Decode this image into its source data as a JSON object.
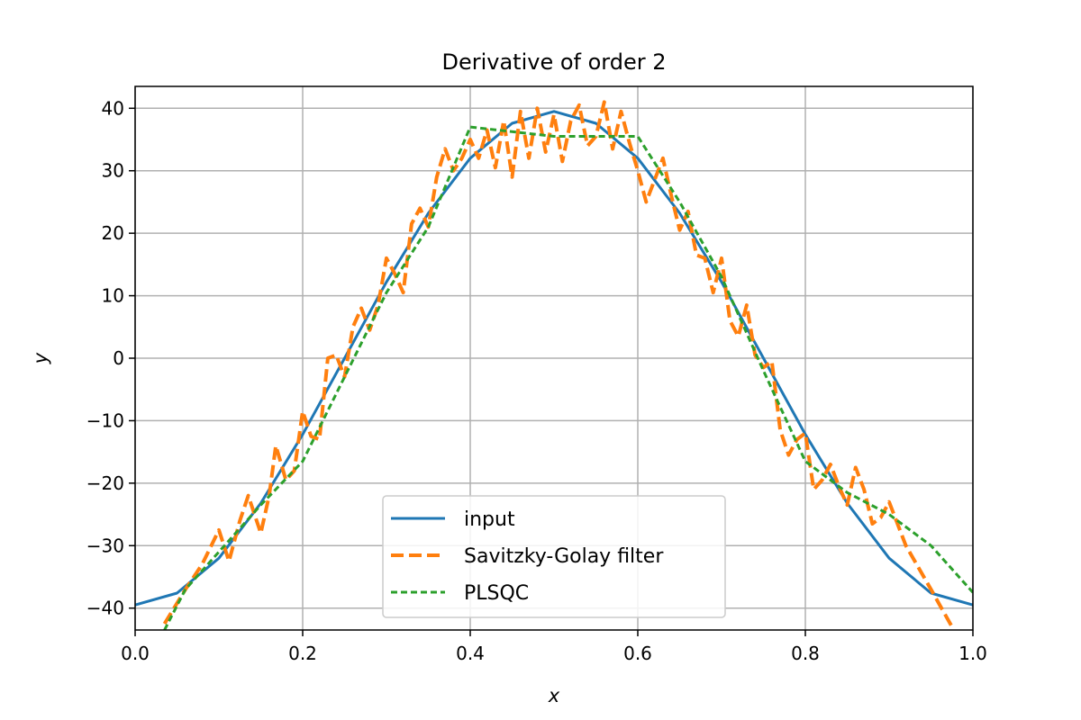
{
  "chart_data": {
    "type": "line",
    "title": "Derivative of order 2",
    "xlabel": "x",
    "ylabel": "y",
    "xlim": [
      0.0,
      1.0
    ],
    "ylim": [
      -43.5,
      43.5
    ],
    "grid": true,
    "legend_position": "lower center",
    "xticks": [
      0.0,
      0.2,
      0.4,
      0.6,
      0.8,
      1.0
    ],
    "xtick_labels": [
      "0.0",
      "0.2",
      "0.4",
      "0.6",
      "0.8",
      "1.0"
    ],
    "yticks": [
      -40,
      -30,
      -20,
      -10,
      0,
      10,
      20,
      30,
      40
    ],
    "ytick_labels": [
      "−40",
      "−30",
      "−20",
      "−10",
      "0",
      "10",
      "20",
      "30",
      "40"
    ],
    "series": [
      {
        "name": "input",
        "color": "#1f77b4",
        "style": "solid",
        "x": [
          0.0,
          0.05,
          0.1,
          0.15,
          0.2,
          0.25,
          0.3,
          0.35,
          0.4,
          0.45,
          0.5,
          0.55,
          0.6,
          0.65,
          0.7,
          0.75,
          0.8,
          0.85,
          0.9,
          0.95,
          1.0
        ],
        "y": [
          -39.5,
          -37.6,
          -32.0,
          -23.2,
          -12.2,
          0.0,
          12.2,
          23.2,
          32.0,
          37.6,
          39.5,
          37.6,
          32.0,
          23.2,
          12.2,
          0.0,
          -12.2,
          -23.2,
          -32.0,
          -37.6,
          -39.5
        ]
      },
      {
        "name": "Savitzky-Golay filter",
        "color": "#ff7f0e",
        "style": "dashed",
        "x": [
          0.035,
          0.06,
          0.08,
          0.1,
          0.112,
          0.125,
          0.135,
          0.15,
          0.16,
          0.168,
          0.18,
          0.19,
          0.2,
          0.21,
          0.22,
          0.23,
          0.24,
          0.25,
          0.26,
          0.27,
          0.28,
          0.29,
          0.3,
          0.31,
          0.32,
          0.33,
          0.34,
          0.35,
          0.36,
          0.37,
          0.38,
          0.39,
          0.4,
          0.41,
          0.42,
          0.43,
          0.44,
          0.45,
          0.46,
          0.47,
          0.48,
          0.49,
          0.5,
          0.51,
          0.52,
          0.53,
          0.54,
          0.55,
          0.56,
          0.57,
          0.58,
          0.59,
          0.6,
          0.61,
          0.62,
          0.63,
          0.64,
          0.65,
          0.66,
          0.67,
          0.68,
          0.69,
          0.7,
          0.71,
          0.72,
          0.73,
          0.74,
          0.75,
          0.76,
          0.77,
          0.78,
          0.79,
          0.8,
          0.81,
          0.82,
          0.83,
          0.84,
          0.85,
          0.86,
          0.87,
          0.88,
          0.89,
          0.9,
          0.92,
          0.95,
          0.975
        ],
        "y": [
          -42.5,
          -37.0,
          -33.0,
          -27.5,
          -32.5,
          -26.0,
          -22.0,
          -28.0,
          -22.0,
          -14.0,
          -19.5,
          -18.0,
          -8.5,
          -12.5,
          -13.0,
          0.0,
          0.5,
          -3.0,
          5.0,
          8.0,
          4.5,
          8.5,
          16.0,
          13.5,
          10.5,
          21.5,
          24.0,
          21.0,
          29.0,
          33.5,
          30.0,
          32.0,
          35.0,
          32.0,
          36.5,
          30.5,
          38.0,
          29.0,
          39.5,
          32.0,
          40.0,
          33.0,
          39.0,
          31.5,
          38.0,
          40.5,
          34.0,
          35.5,
          41.0,
          33.5,
          39.5,
          34.5,
          30.0,
          25.0,
          28.5,
          32.0,
          26.0,
          20.5,
          23.5,
          16.5,
          16.0,
          10.5,
          16.0,
          6.0,
          3.5,
          8.5,
          0.5,
          -1.5,
          -0.5,
          -11.5,
          -15.5,
          -13.0,
          -12.0,
          -21.0,
          -19.5,
          -17.0,
          -20.5,
          -23.5,
          -17.5,
          -21.0,
          -26.5,
          -25.5,
          -23.0,
          -30.0,
          -37.0,
          -43.0
        ]
      },
      {
        "name": "PLSQC",
        "color": "#2ca02c",
        "style": "dotted-dashed",
        "x": [
          0.035,
          0.06,
          0.1,
          0.15,
          0.2,
          0.25,
          0.3,
          0.35,
          0.4,
          0.5,
          0.6,
          0.65,
          0.7,
          0.75,
          0.8,
          0.85,
          0.9,
          0.95,
          1.0
        ],
        "y": [
          -43.5,
          -37.0,
          -31.0,
          -23.5,
          -16.5,
          -3.0,
          10.5,
          21.0,
          37.0,
          35.5,
          35.5,
          25.0,
          13.0,
          -2.0,
          -16.5,
          -21.5,
          -25.0,
          -30.0,
          -37.5
        ]
      }
    ]
  }
}
